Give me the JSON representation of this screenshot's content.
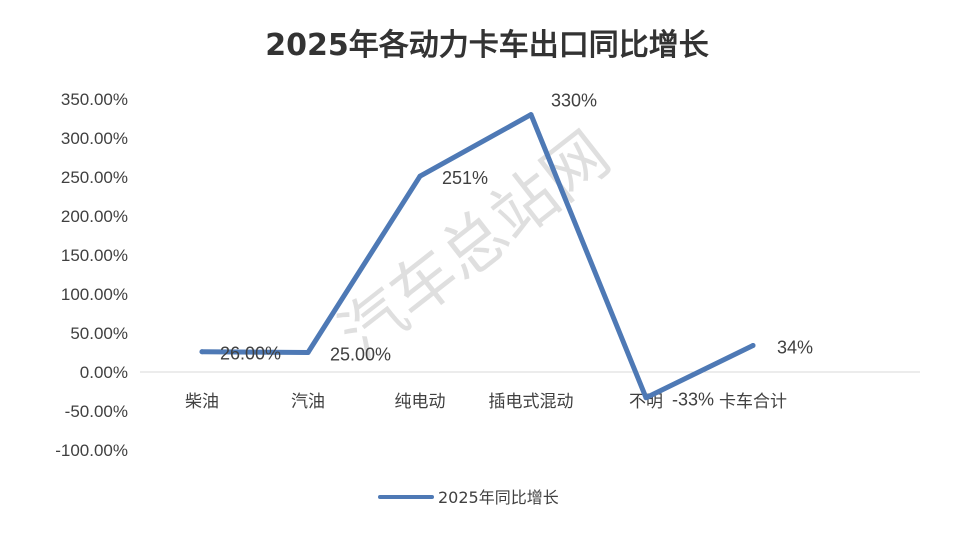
{
  "chart_data": {
    "type": "line",
    "title": "2025年各动力卡车出口同比增长",
    "categories": [
      "柴油",
      "汽油",
      "纯电动",
      "插电式混动",
      "不明",
      "卡车合计"
    ],
    "series": [
      {
        "name": "2025年同比增长",
        "color": "#4e79b5",
        "values": [
          26,
          25,
          251,
          330,
          -33,
          34
        ]
      }
    ],
    "data_labels": [
      "26.00%",
      "25.00%",
      "251%",
      "330%",
      "-33%",
      "34%"
    ],
    "y_ticks": [
      350,
      300,
      250,
      200,
      150,
      100,
      50,
      0,
      -50,
      -100
    ],
    "y_tick_labels": [
      "350.00%",
      "300.00%",
      "250.00%",
      "200.00%",
      "150.00%",
      "100.00%",
      "50.00%",
      "0.00%",
      "-50.00%",
      "-100.00%"
    ],
    "ylim": [
      -100,
      350
    ],
    "grid": false,
    "legend": "bottom",
    "xlabel": "",
    "ylabel": ""
  },
  "watermark": "汽车总站网"
}
